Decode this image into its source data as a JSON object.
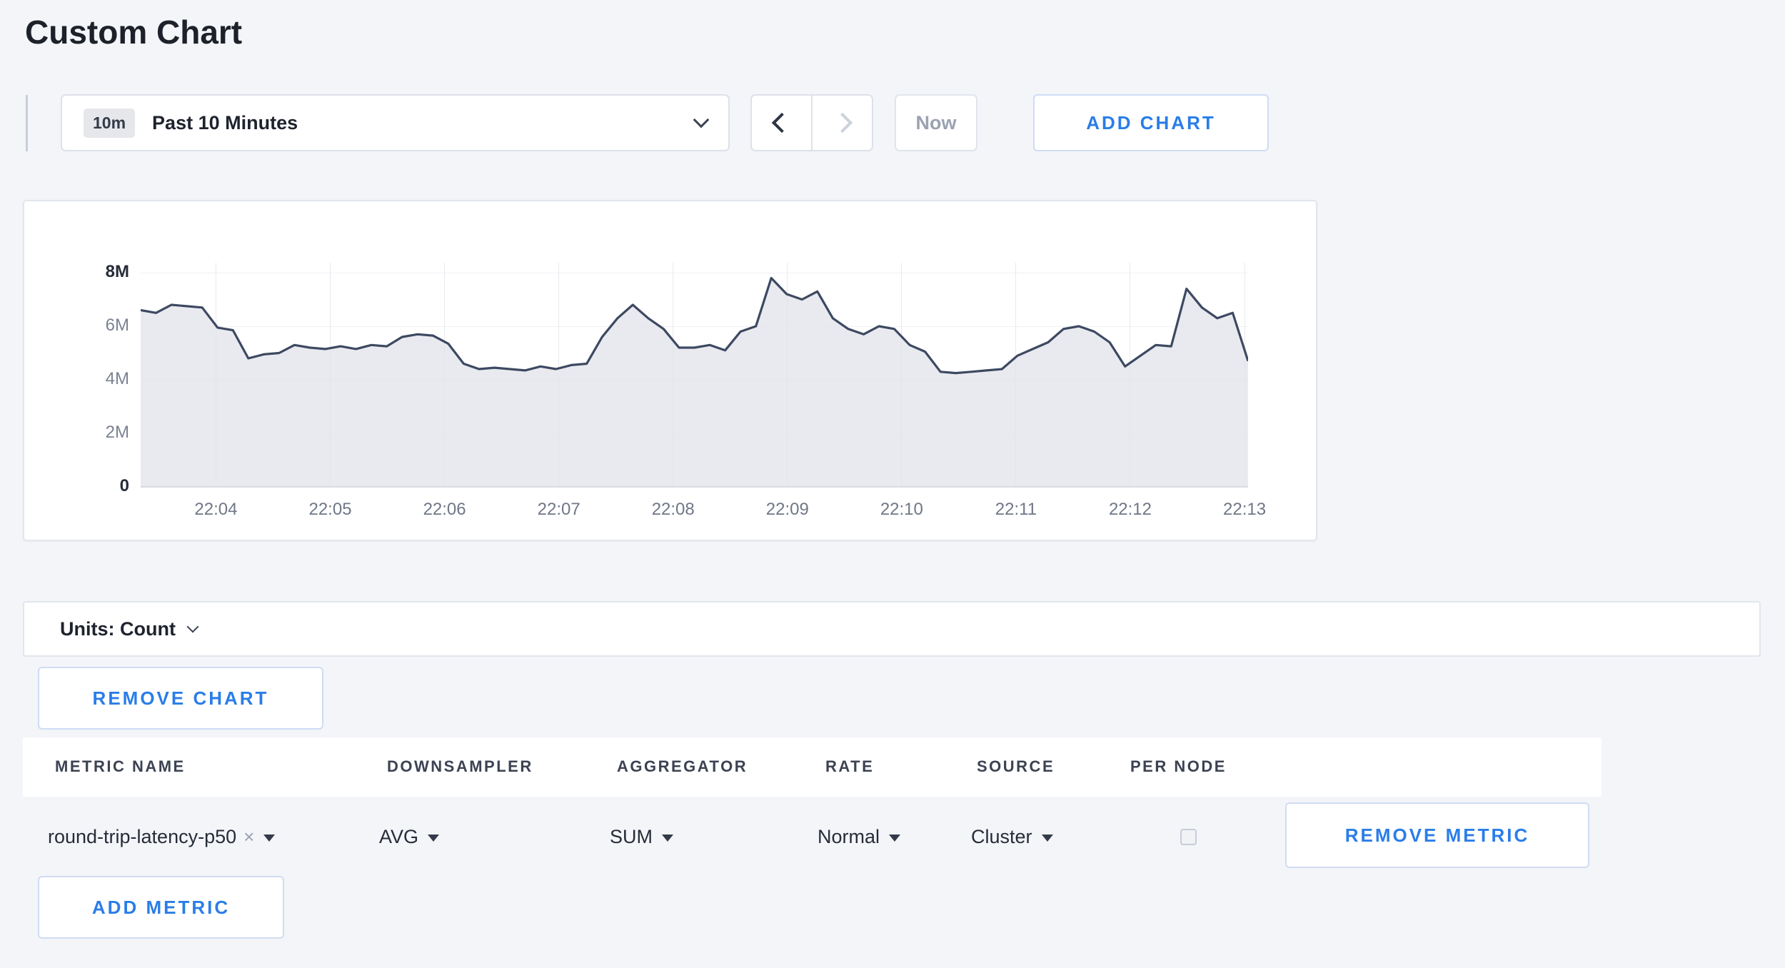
{
  "colors": {
    "accent": "#2a7de8",
    "line": "#3d4961",
    "area_fill": "rgba(225,227,233,0.75)",
    "background": "#f4f5f9"
  },
  "page": {
    "title": "Custom Chart"
  },
  "toolbar": {
    "time_range": {
      "badge": "10m",
      "label": "Past 10 Minutes"
    },
    "prev_icon": "chevron-left",
    "next_icon": "chevron-right",
    "now_label": "Now",
    "add_chart_label": "ADD CHART"
  },
  "chart_data": {
    "type": "area",
    "title": "",
    "unit": "Count",
    "ylim": [
      0,
      8000000
    ],
    "y_ticks": [
      "0",
      "2M",
      "4M",
      "6M",
      "8M"
    ],
    "x_ticks": [
      "22:04",
      "22:05",
      "22:06",
      "22:07",
      "22:08",
      "22:09",
      "22:10",
      "22:11",
      "22:12",
      "22:13"
    ],
    "x_axis": {
      "tick_start_frac": 0.068,
      "tick_step_frac": 0.1032
    },
    "grid": true,
    "legend": "none",
    "series": [
      {
        "name": "round-trip-latency-p50",
        "values_millions": [
          6.6,
          6.5,
          6.8,
          6.75,
          6.7,
          5.95,
          5.85,
          4.8,
          4.95,
          5.0,
          5.3,
          5.2,
          5.15,
          5.25,
          5.15,
          5.3,
          5.25,
          5.6,
          5.7,
          5.65,
          5.35,
          4.6,
          4.4,
          4.45,
          4.4,
          4.35,
          4.5,
          4.4,
          4.55,
          4.6,
          5.6,
          6.3,
          6.8,
          6.3,
          5.9,
          5.2,
          5.2,
          5.3,
          5.1,
          5.8,
          6.0,
          7.8,
          7.2,
          7.0,
          7.3,
          6.3,
          5.9,
          5.7,
          6.0,
          5.9,
          5.3,
          5.05,
          4.3,
          4.25,
          4.3,
          4.35,
          4.4,
          4.9,
          5.15,
          5.4,
          5.9,
          6.0,
          5.8,
          5.4,
          4.5,
          4.9,
          5.3,
          5.25,
          7.4,
          6.7,
          6.3,
          6.5,
          4.7
        ]
      }
    ]
  },
  "units_bar": {
    "label": "Units: Count"
  },
  "chart_actions": {
    "remove_chart_label": "REMOVE CHART",
    "add_metric_label": "ADD METRIC"
  },
  "metrics_table": {
    "columns": [
      "METRIC NAME",
      "DOWNSAMPLER",
      "AGGREGATOR",
      "RATE",
      "SOURCE",
      "PER NODE"
    ],
    "rows": [
      {
        "metric_name": "round-trip-latency-p50",
        "remove_tag_icon": "×",
        "downsampler": "AVG",
        "aggregator": "SUM",
        "rate": "Normal",
        "source": "Cluster",
        "per_node_checked": false,
        "remove_metric_label": "REMOVE METRIC"
      }
    ]
  }
}
